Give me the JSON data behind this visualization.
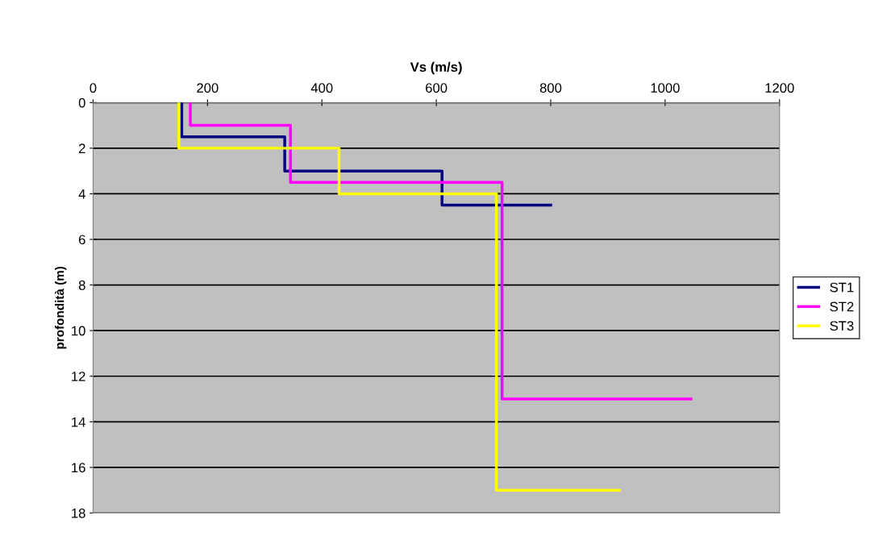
{
  "chart_data": {
    "type": "line",
    "xlabel": "Vs (m/s)",
    "ylabel": "profondità (m)",
    "xlim": [
      0,
      1200
    ],
    "xticks": [
      0,
      200,
      400,
      600,
      800,
      1000,
      1200
    ],
    "ylim": [
      18,
      0
    ],
    "yticks": [
      0,
      2,
      4,
      6,
      8,
      10,
      12,
      14,
      16,
      18
    ],
    "grid": "y",
    "legend": "right",
    "marker": "none",
    "line_style": "solid",
    "series": [
      {
        "name": "ST1",
        "color": "#000080",
        "x": [
          155,
          155,
          335,
          335,
          610,
          610,
          800
        ],
        "values": [
          0,
          1.5,
          1.5,
          3,
          3,
          4.5,
          4.5
        ]
      },
      {
        "name": "ST2",
        "color": "#ff00ff",
        "x": [
          170,
          170,
          345,
          345,
          715,
          715,
          1045
        ],
        "values": [
          0,
          1,
          1,
          3.5,
          3.5,
          13,
          13
        ]
      },
      {
        "name": "ST3",
        "color": "#ffff00",
        "x": [
          150,
          150,
          430,
          430,
          705,
          705,
          920
        ],
        "values": [
          0,
          2,
          2,
          4,
          4,
          17,
          17
        ]
      }
    ]
  }
}
